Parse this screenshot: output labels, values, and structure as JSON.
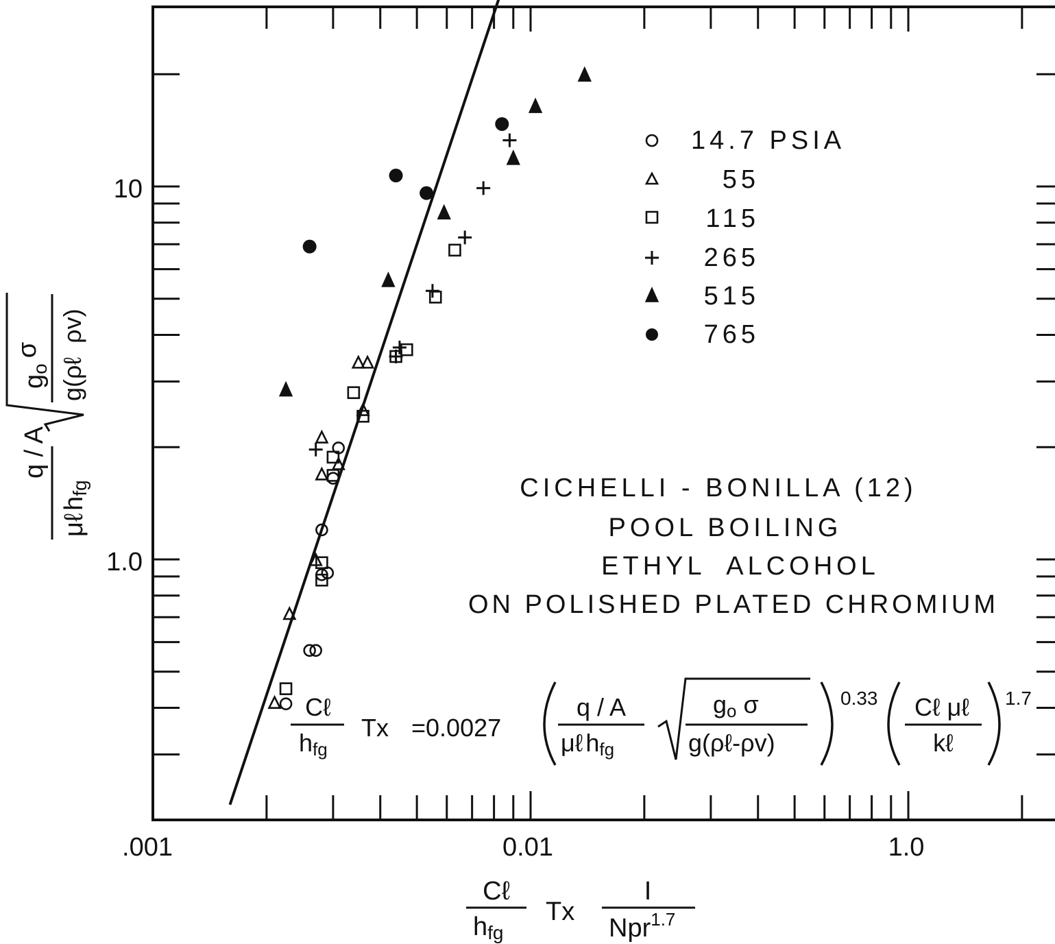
{
  "chart_data": {
    "type": "scatter",
    "xscale": "log",
    "yscale": "log",
    "xlim": [
      0.001,
      5.0
    ],
    "ylim": [
      0.2,
      50
    ],
    "x_tick_labels": [
      {
        "value": 0.001,
        "label": ".001"
      },
      {
        "value": 0.01,
        "label": "0.01"
      },
      {
        "value": 1.0,
        "label": "1.0"
      }
    ],
    "y_tick_labels": [
      {
        "value": 10,
        "label": "10"
      },
      {
        "value": 1.0,
        "label": "1.0"
      }
    ],
    "grid": false,
    "legend_position": "top-right",
    "legend": [
      {
        "symbol": "○",
        "marker": "open-circle",
        "label": "14.7 PSIA"
      },
      {
        "symbol": "△",
        "marker": "open-triangle",
        "label": "55"
      },
      {
        "symbol": "□",
        "marker": "open-square",
        "label": "115"
      },
      {
        "symbol": "+",
        "marker": "plus",
        "label": "265"
      },
      {
        "symbol": "▲",
        "marker": "filled-triangle",
        "label": "515"
      },
      {
        "symbol": "●",
        "marker": "filled-circle",
        "label": "765"
      }
    ],
    "annotation_lines": [
      "CICHELLI - BONILLA (12)",
      "POOL BOILING",
      "ETHYL  ALCOHOL",
      "ON POLISHED PLATED CHROMIUM"
    ],
    "fit_line": {
      "points": [
        [
          0.0016,
          0.22
        ],
        [
          0.0093,
          46
        ]
      ]
    },
    "series": [
      {
        "name": "14.7 PSIA",
        "marker": "open-circle",
        "points": [
          [
            0.00225,
            0.41
          ],
          [
            0.0026,
            0.57
          ],
          [
            0.0027,
            0.57
          ],
          [
            0.0028,
            0.91
          ],
          [
            0.0029,
            0.92
          ],
          [
            0.0028,
            1.2
          ],
          [
            0.003,
            1.65
          ],
          [
            0.0031,
            1.99
          ]
        ]
      },
      {
        "name": "55",
        "marker": "open-triangle",
        "points": [
          [
            0.0021,
            0.41
          ],
          [
            0.0023,
            0.71
          ],
          [
            0.0027,
            0.99
          ],
          [
            0.0028,
            1.68
          ],
          [
            0.0028,
            2.11
          ],
          [
            0.0031,
            1.79
          ],
          [
            0.0036,
            2.5
          ],
          [
            0.0035,
            3.35
          ],
          [
            0.0037,
            3.35
          ]
        ]
      },
      {
        "name": "115",
        "marker": "open-square",
        "points": [
          [
            0.00225,
            0.45
          ],
          [
            0.0028,
            0.88
          ],
          [
            0.0028,
            0.98
          ],
          [
            0.003,
            1.68
          ],
          [
            0.003,
            1.88
          ],
          [
            0.0036,
            2.42
          ],
          [
            0.0034,
            2.8
          ],
          [
            0.0044,
            3.5
          ],
          [
            0.0047,
            3.65
          ],
          [
            0.0056,
            5.05
          ],
          [
            0.0063,
            6.75
          ]
        ]
      },
      {
        "name": "265",
        "marker": "plus",
        "points": [
          [
            0.0027,
            1.97
          ],
          [
            0.0044,
            3.5
          ],
          [
            0.0045,
            3.7
          ],
          [
            0.0055,
            5.25
          ],
          [
            0.0067,
            7.3
          ],
          [
            0.0075,
            9.9
          ],
          [
            0.0088,
            13.3
          ]
        ]
      },
      {
        "name": "515",
        "marker": "filled-triangle",
        "points": [
          [
            0.00225,
            2.85
          ],
          [
            0.0042,
            5.6
          ],
          [
            0.0059,
            8.5
          ],
          [
            0.009,
            11.9
          ],
          [
            0.0103,
            16.4
          ],
          [
            0.0139,
            19.9
          ]
        ]
      },
      {
        "name": "765",
        "marker": "filled-circle",
        "points": [
          [
            0.0026,
            6.9
          ],
          [
            0.0044,
            10.7
          ],
          [
            0.0053,
            9.6
          ],
          [
            0.0084,
            14.7
          ]
        ]
      }
    ]
  },
  "ylabel": {
    "q_over_a": "q / A",
    "mu_l": "μℓ",
    "h": "h",
    "fg": "fg",
    "g": "g",
    "o": "o",
    "sigma": "σ",
    "g_rho": "g(ρℓ  ρv)"
  },
  "xlabel": {
    "c_l": "Cℓ",
    "h": "h",
    "fg": "fg",
    "tx": "Tx",
    "one": "I",
    "npr": "Npr",
    "exp": "1.7"
  },
  "equation": {
    "c_l": "Cℓ",
    "h": "h",
    "fg": "fg",
    "tx": "Tx",
    "coef": "=0.0027",
    "q_over_a": "q / A",
    "mu_l": "μℓ",
    "h2": "h",
    "fg2": "fg",
    "g0": "g",
    "o": "o",
    "sigma": "σ",
    "g_rho": "g(ρℓ-ρv)",
    "exp1": "0.33",
    "cl_mul": "Cℓ μℓ",
    "k_l": "kℓ",
    "exp2": "1.7"
  }
}
